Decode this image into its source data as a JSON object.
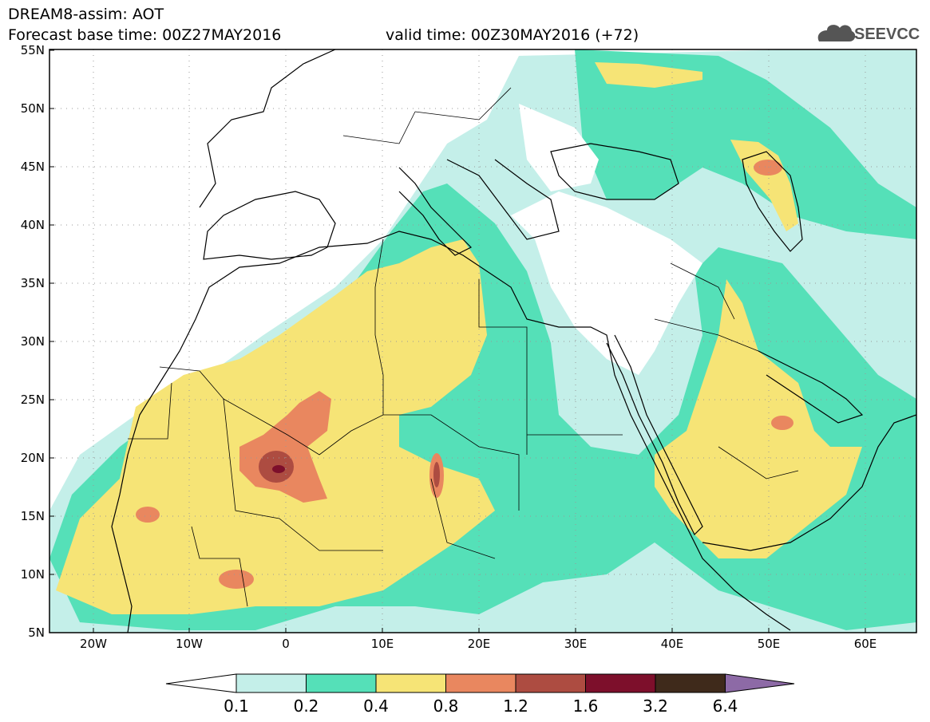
{
  "header": {
    "line1": "DREAM8-assim: AOT",
    "line2_left": "Forecast base time: 00Z27MAY2016",
    "line2_right": "valid time: 00Z30MAY2016 (+72)",
    "logo_text": "SEEVCCC"
  },
  "axes": {
    "lat_labels": [
      "55N",
      "50N",
      "45N",
      "40N",
      "35N",
      "30N",
      "25N",
      "20N",
      "15N",
      "10N",
      "5N"
    ],
    "lon_labels": [
      "20W",
      "10W",
      "0",
      "10E",
      "20E",
      "30E",
      "40E",
      "50E",
      "60E"
    ]
  },
  "colorbar": {
    "labels": [
      "0.1",
      "0.2",
      "0.4",
      "0.8",
      "1.2",
      "1.6",
      "3.2",
      "6.4"
    ],
    "colors": [
      "#ffffff",
      "#c4efe9",
      "#55e0b8",
      "#f6e476",
      "#e9875f",
      "#ad4c41",
      "#7d0f2b",
      "#3f2a1b",
      "#8d6aa6"
    ]
  },
  "palette": {
    "low": "#c4efe9",
    "medium": "#55e0b8",
    "high": "#f6e476",
    "very_high": "#e9875f",
    "extreme": "#ad4c41",
    "peak": "#7d0f2b"
  }
}
